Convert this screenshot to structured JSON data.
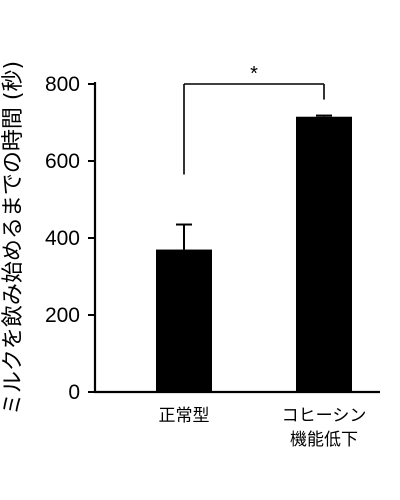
{
  "chart_data": {
    "type": "bar",
    "ylabel": "ミルクを飲み始めるまでの時間 (秒)",
    "xlabel": "",
    "title": "",
    "ylim": [
      0,
      800
    ],
    "yticks": [
      0,
      200,
      400,
      600,
      800
    ],
    "categories": [
      [
        "正常型"
      ],
      [
        "コヒーシン",
        "機能低下"
      ]
    ],
    "values": [
      370,
      715
    ],
    "error": [
      65,
      3
    ],
    "significance": {
      "label": "*",
      "between": [
        0,
        1
      ]
    },
    "grid": false,
    "legend": "none",
    "colors": {
      "bar": "#000000",
      "axis": "#000000"
    }
  }
}
